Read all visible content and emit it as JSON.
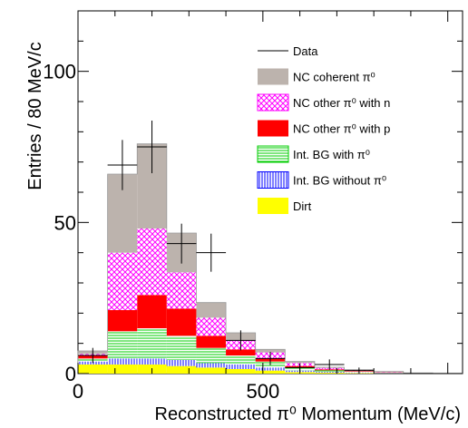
{
  "chart_data": {
    "type": "bar",
    "stacked": true,
    "xlabel": "Reconstructed π⁰ Momentum (MeV/c)",
    "ylabel": "Entries / 80 MeV/c",
    "xlim": [
      0,
      1040
    ],
    "ylim": [
      0,
      120
    ],
    "x_ticks": [
      "0",
      "500"
    ],
    "x_tick_values": [
      0,
      500
    ],
    "y_ticks": [
      "0",
      "50",
      "100"
    ],
    "y_tick_values": [
      0,
      50,
      100
    ],
    "bin_width": 80,
    "bin_edges": [
      0,
      80,
      160,
      240,
      320,
      400,
      480,
      560,
      640,
      720,
      800,
      880,
      960,
      1040
    ],
    "series": [
      {
        "name": "Dirt",
        "color": "#ffff00",
        "fill": "solid",
        "values": [
          3,
          3,
          3,
          2.5,
          2,
          1.5,
          1,
          0.5,
          0.3,
          0.2,
          0.1,
          0.1,
          0.1
        ]
      },
      {
        "name": "Int. BG without π⁰",
        "color": "#0000ff",
        "fill": "vlines",
        "values": [
          1,
          2,
          2,
          2,
          1.5,
          1.5,
          1,
          0.5,
          0.3,
          0.2,
          0.1,
          0,
          0
        ]
      },
      {
        "name": "Int. BG with π⁰",
        "color": "#00cc00",
        "fill": "hlines",
        "values": [
          1,
          9,
          10,
          8,
          5,
          3,
          2,
          1,
          0.5,
          0.3,
          0.2,
          0.1,
          0
        ]
      },
      {
        "name": "NC other π⁰ with p",
        "color": "#ff0000",
        "fill": "solid",
        "values": [
          1,
          7,
          11,
          9,
          4,
          2,
          1,
          0.5,
          0.3,
          0.2,
          0.1,
          0,
          0
        ]
      },
      {
        "name": "NC other π⁰ with n",
        "color": "#ff00ff",
        "fill": "cross",
        "values": [
          0.5,
          19,
          22,
          12,
          6,
          3,
          2,
          1,
          0.5,
          0.3,
          0.1,
          0,
          0
        ]
      },
      {
        "name": "NC coherent π⁰",
        "color": "#bcb3ad",
        "fill": "solid",
        "values": [
          1,
          26,
          28,
          13,
          5,
          2.5,
          1,
          0.5,
          0.2,
          0.1,
          0.1,
          0,
          0
        ]
      }
    ],
    "data_points": {
      "name": "Data",
      "x": [
        40,
        120,
        200,
        280,
        360,
        440,
        520,
        600,
        680,
        760,
        840,
        920,
        1000
      ],
      "y": [
        6,
        69,
        75,
        43,
        40,
        11,
        5,
        2,
        3,
        1,
        0,
        0,
        0
      ],
      "yerr": [
        2.5,
        8.3,
        8.7,
        6.6,
        6.3,
        3.3,
        2.2,
        1.4,
        1.7,
        1,
        0,
        0,
        0
      ]
    },
    "legend": {
      "placement": "top-right",
      "items": [
        {
          "label": "Data",
          "style": "line",
          "color": "#000000"
        },
        {
          "label": "NC coherent  π⁰",
          "style": "solid",
          "color": "#bcb3ad"
        },
        {
          "label": "NC other  π⁰ with n",
          "style": "cross",
          "color": "#ff00ff"
        },
        {
          "label": "NC other  π⁰ with p",
          "style": "solid",
          "color": "#ff0000"
        },
        {
          "label": "Int. BG with  π⁰",
          "style": "hlines",
          "color": "#00cc00"
        },
        {
          "label": "Int. BG without  π⁰",
          "style": "vlines",
          "color": "#0000ff"
        },
        {
          "label": "Dirt",
          "style": "solid",
          "color": "#ffff00"
        }
      ]
    },
    "grid": false
  }
}
